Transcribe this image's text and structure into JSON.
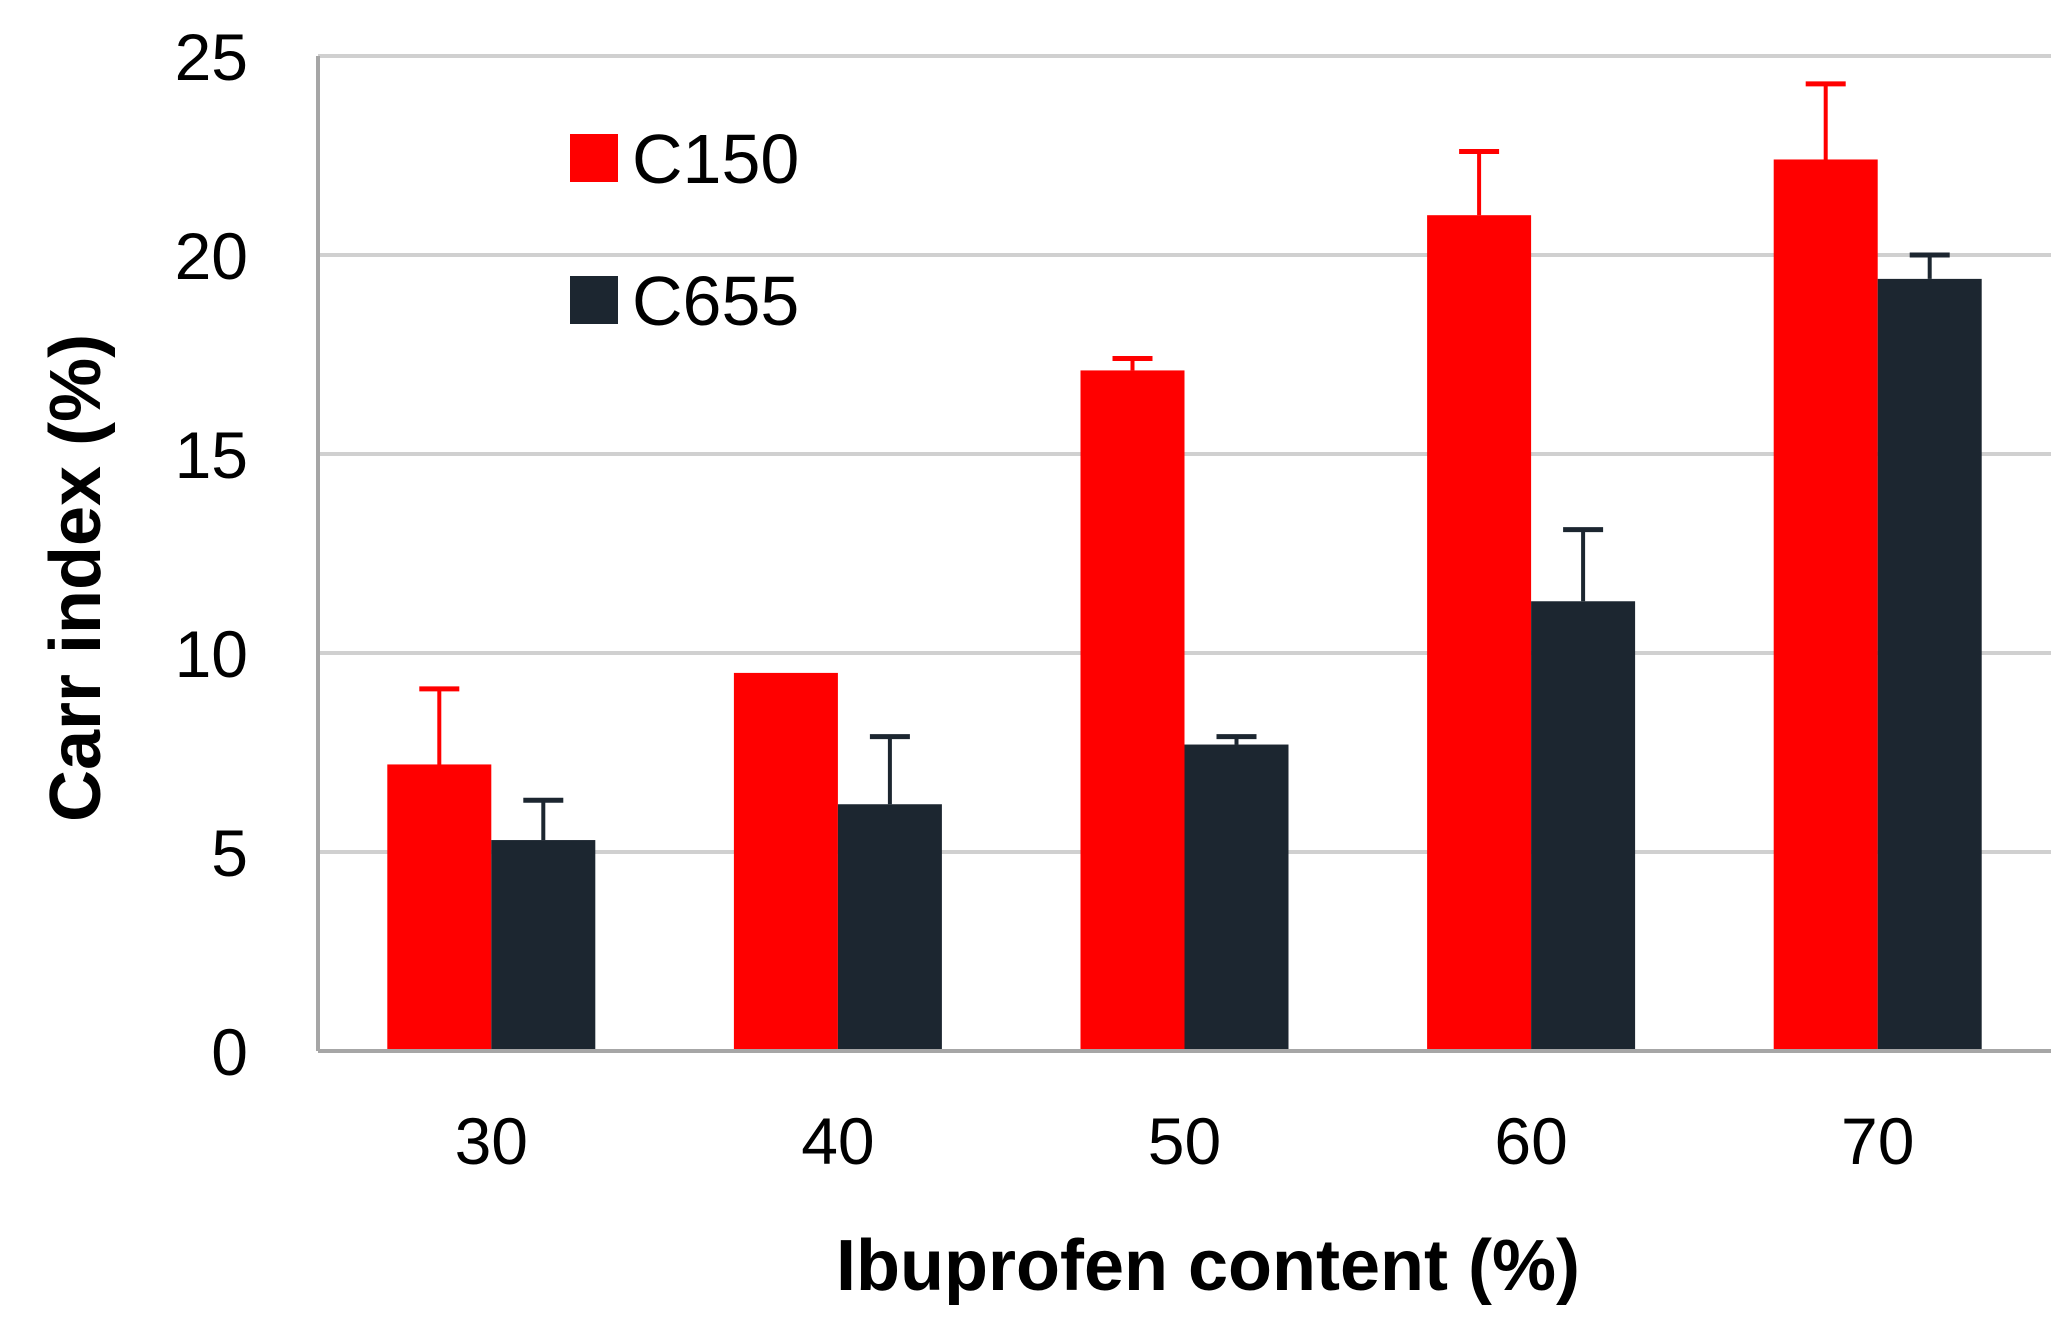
{
  "chart_data": {
    "type": "bar",
    "title": "",
    "xlabel": "Ibuprofen content (%)",
    "ylabel": "Carr index (%)",
    "categories": [
      "30",
      "40",
      "50",
      "60",
      "70"
    ],
    "ylim": [
      0,
      25
    ],
    "yticks": [
      "0",
      "5",
      "10",
      "15",
      "20",
      "25"
    ],
    "grid": true,
    "legend_position": "top-left",
    "series": [
      {
        "name": "C150",
        "color": "#ff0000",
        "values": [
          7.2,
          9.5,
          17.1,
          21.0,
          22.4
        ],
        "errors": [
          1.9,
          0.0,
          0.3,
          1.6,
          1.9
        ]
      },
      {
        "name": "C655",
        "color": "#1c2630",
        "values": [
          5.3,
          6.2,
          7.7,
          11.3,
          19.4
        ],
        "errors": [
          1.0,
          1.7,
          0.2,
          1.8,
          0.6
        ]
      }
    ]
  }
}
